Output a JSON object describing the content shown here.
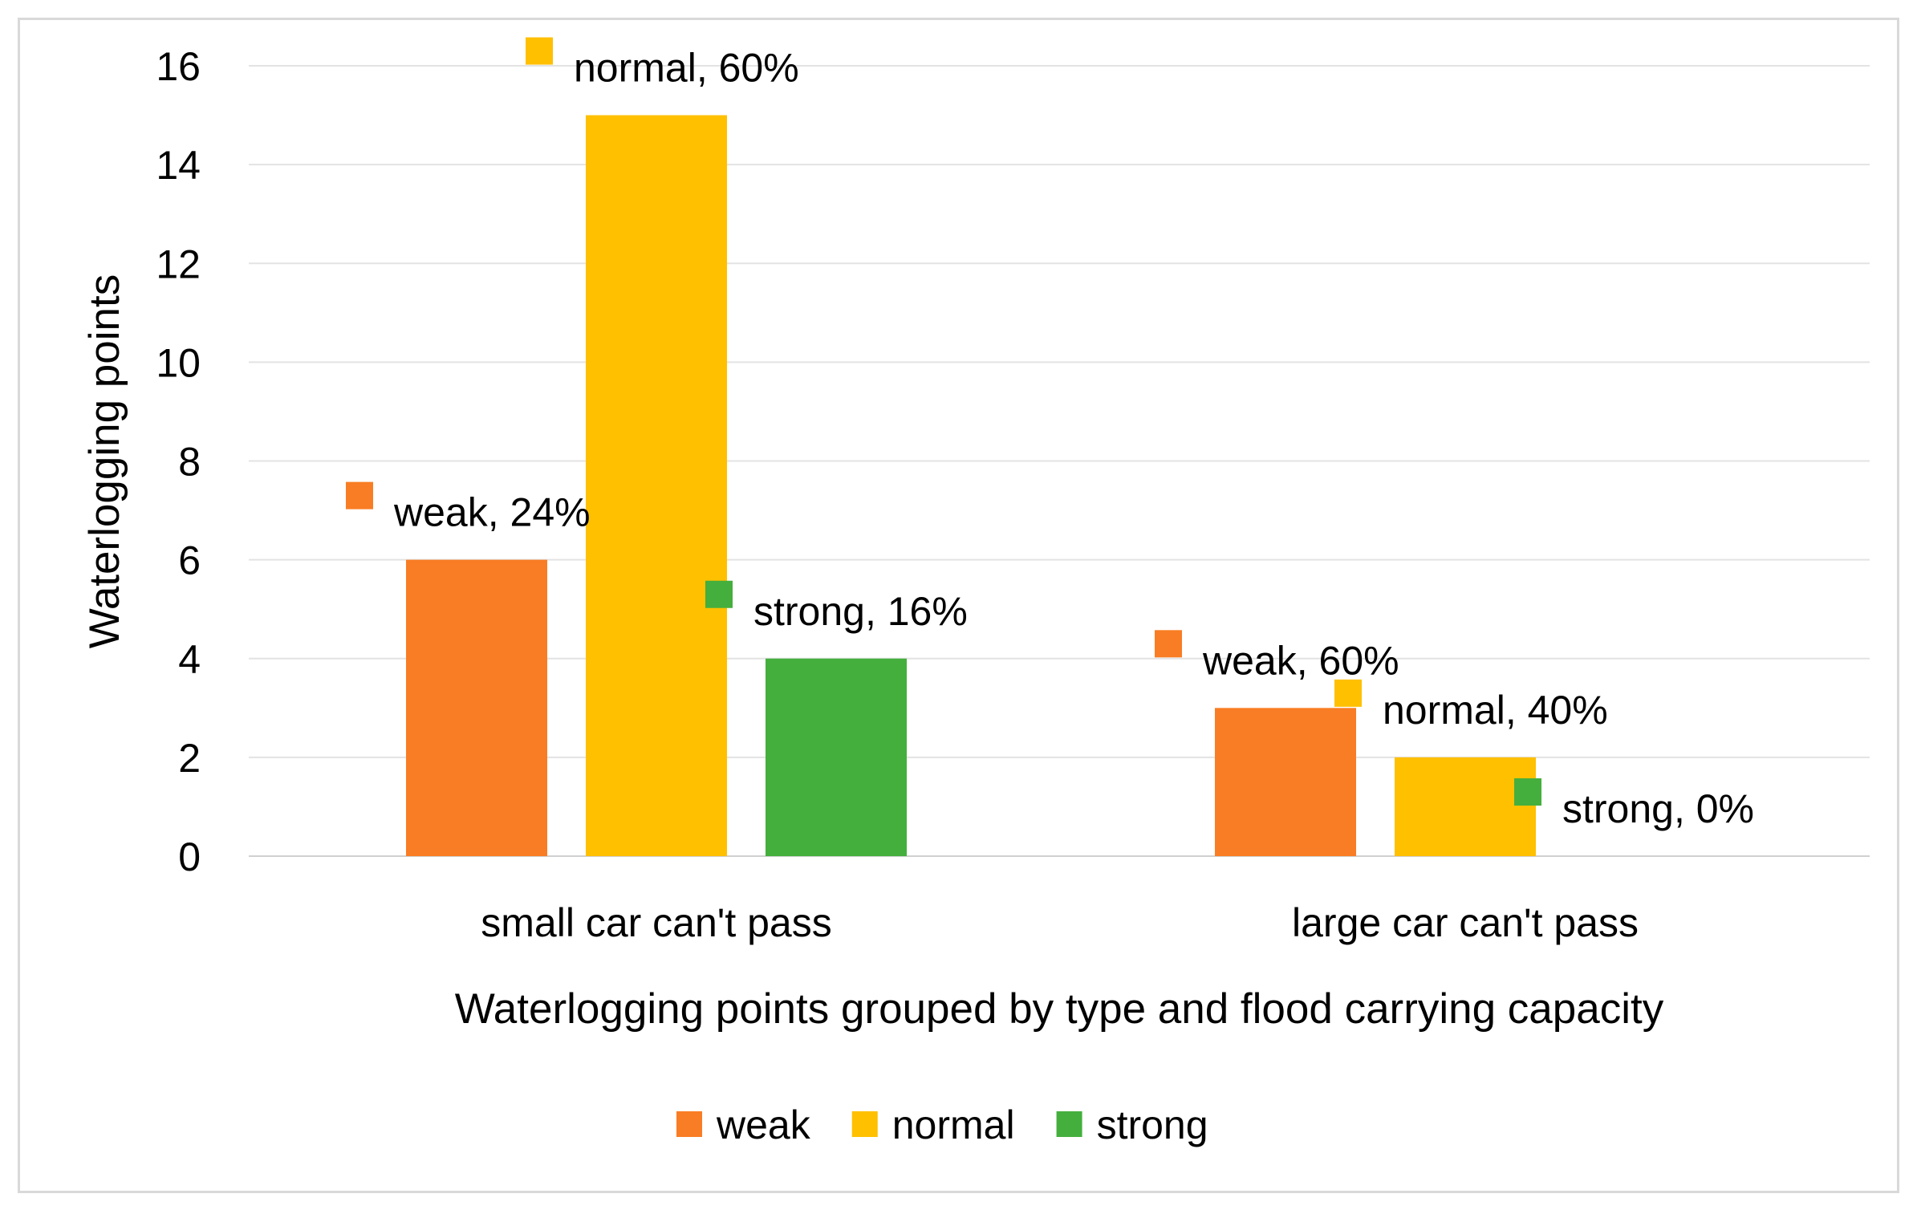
{
  "chart_data": {
    "type": "bar",
    "title": "",
    "xlabel": "Waterlogging points grouped by type and flood carrying capacity",
    "ylabel": "Waterlogging  points",
    "ylim": [
      0,
      16
    ],
    "yticks": [
      0,
      2,
      4,
      6,
      8,
      10,
      12,
      14,
      16
    ],
    "grid": true,
    "legend_position": "bottom",
    "categories": [
      "small car can't pass",
      "large car can't pass"
    ],
    "series": [
      {
        "name": "weak",
        "color": "#F97D24",
        "values": [
          6,
          3
        ],
        "labels": [
          "weak, 24%",
          "weak, 60%"
        ]
      },
      {
        "name": "normal",
        "color": "#FFC000",
        "values": [
          15,
          2
        ],
        "labels": [
          "normal, 60%",
          "normal, 40%"
        ]
      },
      {
        "name": "strong",
        "color": "#44AF3D",
        "values": [
          4,
          0
        ],
        "labels": [
          "strong, 16%",
          "strong, 0%"
        ]
      }
    ]
  }
}
